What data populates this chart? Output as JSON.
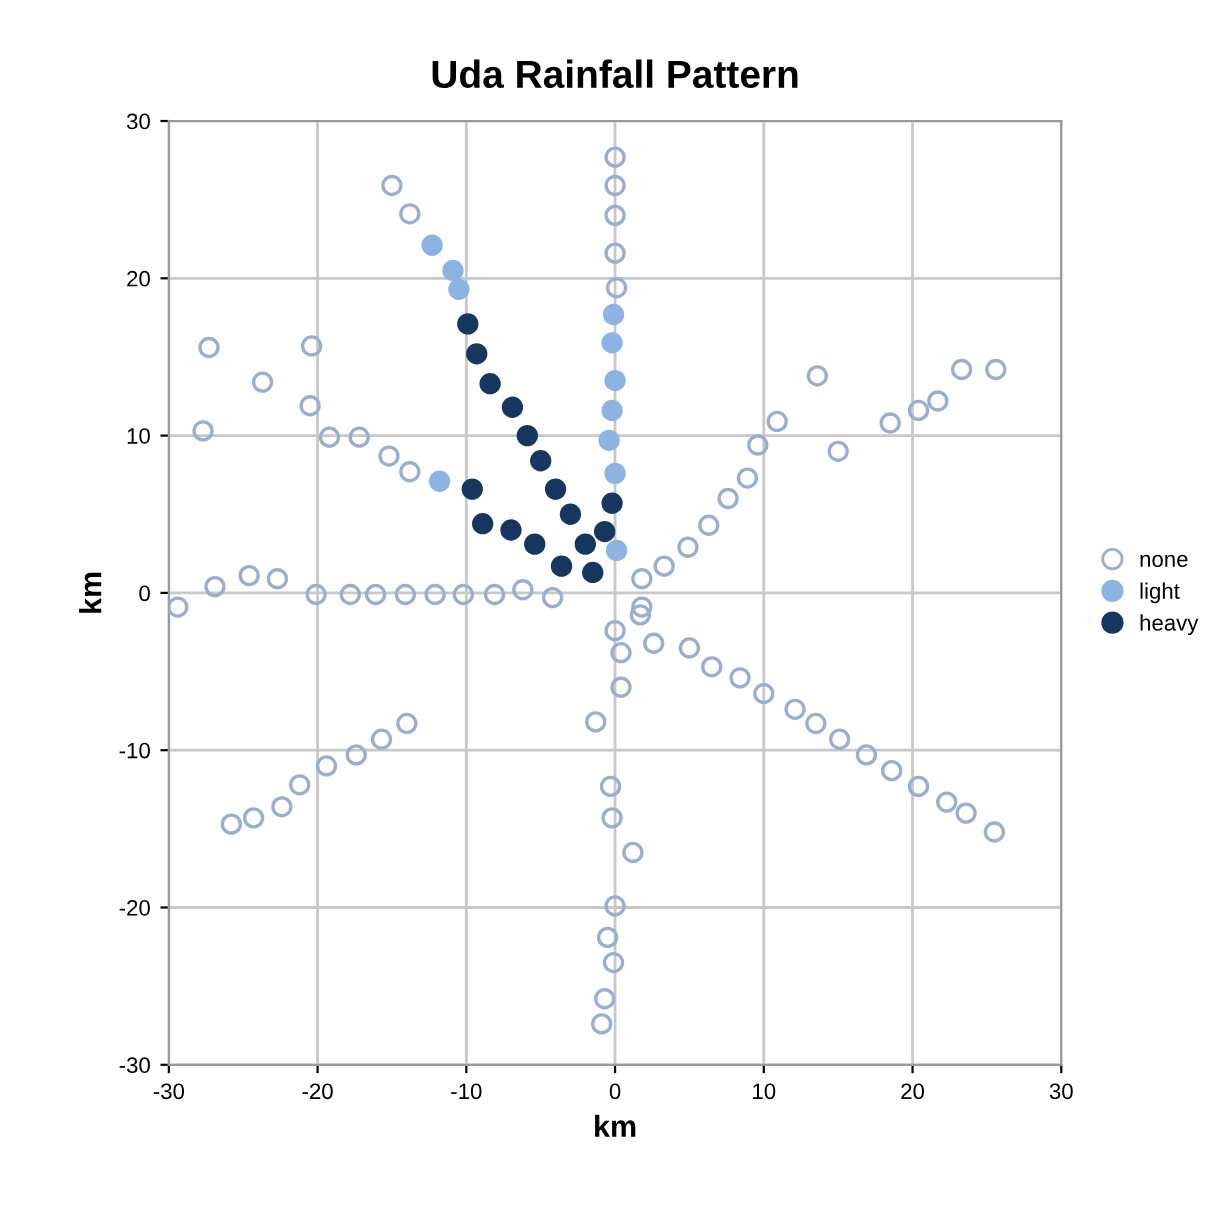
{
  "chart_data": {
    "type": "scatter",
    "title": "Uda Rainfall Pattern",
    "xlabel": "km",
    "ylabel": "km",
    "xlim": [
      -30,
      30
    ],
    "ylim": [
      -30,
      30
    ],
    "xticks": [
      -30,
      -20,
      -10,
      0,
      10,
      20,
      30
    ],
    "yticks": [
      -30,
      -20,
      -10,
      0,
      10,
      20,
      30
    ],
    "grid": true,
    "legend": "right",
    "marker": "circle",
    "series": [
      {
        "name": "none",
        "color": "#9aaed0",
        "x": [
          -15,
          -13.8,
          -27.3,
          -20.4,
          -23.7,
          -27.7,
          -20.5,
          -19.2,
          -17.2,
          -15.2,
          -13.8,
          -26.9,
          -24.6,
          -22.7,
          -20.1,
          -17.8,
          -16.1,
          -14.1,
          -12.1,
          -10.2,
          -8.1,
          -6.2,
          -4.2,
          -29.4,
          0,
          0,
          0,
          0,
          0.1,
          13.6,
          23.3,
          25.6,
          21.7,
          20.4,
          18.5,
          15.0,
          10.9,
          9.6,
          8.9,
          7.6,
          6.3,
          4.9,
          3.3,
          1.8,
          1.8,
          -14.0,
          -15.7,
          -17.4,
          -19.4,
          -21.2,
          -22.4,
          -24.3,
          -25.8,
          0,
          0.4,
          0.4,
          -1.3,
          -0.3,
          -0.2,
          0,
          -0.5,
          -0.1,
          -0.7,
          -0.9,
          1.7,
          2.6,
          5.0,
          6.5,
          8.4,
          10.0,
          12.1,
          13.5,
          15.1,
          16.9,
          18.6,
          20.4,
          22.3,
          23.6,
          25.5,
          1.2
        ],
        "values": [
          25.9,
          24.1,
          15.6,
          15.7,
          13.4,
          10.3,
          11.9,
          9.9,
          9.9,
          8.7,
          7.7,
          0.4,
          1.1,
          0.9,
          -0.1,
          -0.1,
          -0.1,
          -0.1,
          -0.1,
          -0.1,
          -0.1,
          0.2,
          -0.3,
          -0.9,
          27.7,
          25.9,
          24.0,
          21.6,
          19.4,
          13.8,
          14.2,
          14.2,
          12.2,
          11.6,
          10.8,
          9.0,
          10.9,
          9.4,
          7.3,
          6.0,
          4.3,
          2.9,
          1.7,
          0.9,
          -0.9,
          -8.3,
          -9.3,
          -10.3,
          -11.0,
          -12.2,
          -13.6,
          -14.3,
          -14.7,
          -2.4,
          -3.8,
          -6.0,
          -8.2,
          -12.3,
          -14.3,
          -19.9,
          -21.9,
          -23.5,
          -25.8,
          -27.4,
          -1.4,
          -3.2,
          -3.5,
          -4.7,
          -5.4,
          -6.4,
          -7.4,
          -8.3,
          -9.3,
          -10.3,
          -11.3,
          -12.3,
          -13.3,
          -14.0,
          -15.2,
          -16.5
        ]
      },
      {
        "name": "light",
        "color": "#8db3e2",
        "x": [
          -12.3,
          -10.9,
          -10.5,
          -11.8,
          -0.1,
          -0.2,
          0,
          -0.2,
          -0.4,
          0,
          0.1
        ],
        "values": [
          22.1,
          20.5,
          19.3,
          7.1,
          17.7,
          15.9,
          13.5,
          11.6,
          9.7,
          7.6,
          2.7
        ]
      },
      {
        "name": "heavy",
        "color": "#17375e",
        "x": [
          -9.9,
          -9.3,
          -8.4,
          -6.9,
          -5.9,
          -5.0,
          -4.0,
          -3.0,
          -2.0,
          -1.5,
          -3.6,
          -5.4,
          -7.0,
          -8.9,
          -9.6,
          -0.7,
          -0.2
        ],
        "values": [
          17.1,
          15.2,
          13.3,
          11.8,
          10.0,
          8.4,
          6.6,
          5.0,
          3.1,
          1.3,
          1.7,
          3.1,
          4.0,
          4.4,
          6.6,
          3.9,
          5.7
        ]
      }
    ]
  }
}
